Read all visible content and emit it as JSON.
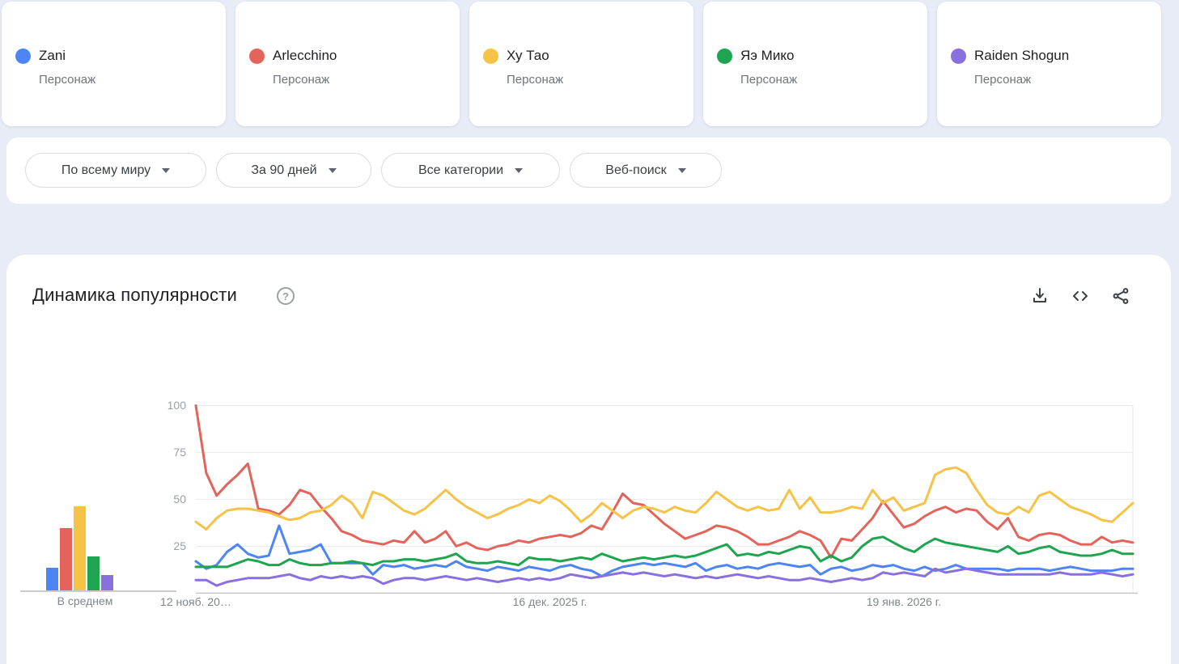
{
  "terms": [
    {
      "name": "Zani",
      "type": "Персонаж",
      "color": "#4d86f4"
    },
    {
      "name": "Arlecchino",
      "type": "Персонаж",
      "color": "#e4645c"
    },
    {
      "name": "Ху Тао",
      "type": "Персонаж",
      "color": "#f6c346"
    },
    {
      "name": "Яэ Мико",
      "type": "Персонаж",
      "color": "#1fa44f"
    },
    {
      "name": "Raiden Shogun",
      "type": "Персонаж",
      "color": "#8a6fdf"
    }
  ],
  "filters": {
    "geo": "По всему миру",
    "time": "За 90 дней",
    "category": "Все категории",
    "search_type": "Веб-поиск"
  },
  "section": {
    "title": "Динамика популярности"
  },
  "toolbar_icons": [
    "download-icon",
    "embed-code-icon",
    "share-icon"
  ],
  "colors": {
    "grid": "#e9eaec",
    "axis_line": "#c6c9cc",
    "y_label": "#9aa0a6",
    "x_label": "#80868b"
  },
  "chart_data": [
    {
      "type": "bar",
      "title": "В среднем",
      "categories": [
        "Zani",
        "Arlecchino",
        "Ху Тао",
        "Яэ Мико",
        "Raiden Shogun"
      ],
      "values": [
        12,
        33,
        45,
        18,
        8
      ],
      "colors": [
        "#4d86f4",
        "#e4645c",
        "#f6c346",
        "#1fa44f",
        "#8a6fdf"
      ],
      "ylim": [
        0,
        100
      ]
    },
    {
      "type": "line",
      "title": "Динамика популярности",
      "xlabel": "",
      "ylabel": "",
      "ylim": [
        0,
        100
      ],
      "y_ticks": [
        25,
        50,
        75,
        100
      ],
      "x_range_days": 90,
      "x_tick_days": [
        0,
        34,
        68
      ],
      "x_tick_labels": [
        "12 нояб. 20…",
        "16 дек. 2025 г.",
        "19 янв. 2026 г."
      ],
      "grid": true,
      "legend": "hidden",
      "series": [
        {
          "name": "Zani",
          "color": "#4d86f4",
          "values": [
            17,
            13,
            15,
            22,
            26,
            21,
            19,
            20,
            36,
            21,
            22,
            23,
            26,
            16,
            16,
            16,
            16,
            10,
            15,
            14,
            15,
            13,
            14,
            15,
            14,
            17,
            14,
            13,
            12,
            14,
            13,
            12,
            14,
            13,
            12,
            14,
            15,
            13,
            12,
            9,
            12,
            14,
            15,
            16,
            15,
            16,
            15,
            14,
            16,
            12,
            14,
            15,
            13,
            14,
            13,
            15,
            16,
            15,
            14,
            15,
            10,
            13,
            14,
            12,
            13,
            15,
            14,
            15,
            13,
            12,
            14,
            12,
            13,
            15,
            13,
            13,
            13,
            13,
            12,
            13,
            13,
            13,
            12,
            13,
            14,
            13,
            12,
            12,
            12,
            13,
            13
          ]
        },
        {
          "name": "Arlecchino",
          "color": "#e4645c",
          "values": [
            100,
            64,
            52,
            58,
            63,
            69,
            45,
            44,
            42,
            47,
            55,
            53,
            46,
            40,
            33,
            31,
            28,
            27,
            26,
            28,
            27,
            33,
            27,
            29,
            33,
            25,
            27,
            24,
            23,
            25,
            26,
            28,
            27,
            29,
            30,
            31,
            30,
            32,
            36,
            34,
            43,
            53,
            48,
            47,
            42,
            37,
            33,
            29,
            31,
            33,
            36,
            35,
            33,
            30,
            26,
            26,
            28,
            30,
            33,
            31,
            28,
            19,
            29,
            28,
            34,
            40,
            49,
            42,
            35,
            37,
            41,
            44,
            46,
            43,
            45,
            44,
            38,
            34,
            40,
            30,
            28,
            31,
            32,
            31,
            28,
            26,
            26,
            30,
            27,
            28,
            27
          ]
        },
        {
          "name": "Ху Тао",
          "color": "#f6c346",
          "values": [
            38,
            34,
            40,
            44,
            45,
            45,
            44,
            43,
            41,
            39,
            40,
            43,
            44,
            47,
            52,
            48,
            40,
            54,
            52,
            48,
            44,
            42,
            45,
            50,
            55,
            50,
            46,
            43,
            40,
            42,
            45,
            47,
            50,
            48,
            52,
            49,
            44,
            38,
            42,
            48,
            44,
            40,
            44,
            46,
            45,
            43,
            46,
            44,
            43,
            48,
            54,
            50,
            46,
            44,
            46,
            44,
            45,
            55,
            45,
            51,
            43,
            43,
            44,
            46,
            45,
            55,
            48,
            51,
            44,
            46,
            48,
            63,
            66,
            67,
            64,
            55,
            47,
            43,
            42,
            46,
            43,
            52,
            54,
            50,
            46,
            44,
            42,
            39,
            38,
            43,
            48
          ]
        },
        {
          "name": "Яэ Мико",
          "color": "#1fa44f",
          "values": [
            14,
            14,
            14,
            14,
            16,
            18,
            17,
            15,
            15,
            18,
            16,
            15,
            15,
            16,
            16,
            17,
            16,
            15,
            17,
            17,
            18,
            18,
            17,
            18,
            19,
            21,
            17,
            16,
            16,
            17,
            16,
            15,
            19,
            18,
            18,
            17,
            18,
            19,
            18,
            21,
            19,
            17,
            18,
            19,
            18,
            19,
            20,
            19,
            20,
            22,
            24,
            26,
            20,
            21,
            20,
            22,
            21,
            23,
            25,
            24,
            17,
            20,
            17,
            19,
            25,
            29,
            30,
            27,
            24,
            22,
            26,
            29,
            27,
            26,
            25,
            24,
            23,
            22,
            25,
            21,
            22,
            24,
            25,
            22,
            21,
            20,
            20,
            21,
            23,
            21,
            21
          ]
        },
        {
          "name": "Raiden Shogun",
          "color": "#8a6fdf",
          "values": [
            7,
            7,
            4,
            6,
            7,
            8,
            8,
            8,
            9,
            10,
            8,
            7,
            9,
            8,
            9,
            8,
            9,
            8,
            5,
            7,
            8,
            8,
            7,
            8,
            9,
            8,
            7,
            8,
            7,
            6,
            7,
            8,
            7,
            8,
            7,
            8,
            10,
            9,
            8,
            9,
            10,
            11,
            10,
            11,
            10,
            9,
            10,
            9,
            8,
            9,
            8,
            9,
            10,
            9,
            8,
            9,
            8,
            7,
            7,
            8,
            7,
            6,
            7,
            8,
            7,
            8,
            11,
            10,
            11,
            10,
            9,
            13,
            11,
            12,
            13,
            12,
            11,
            10,
            10,
            10,
            10,
            10,
            10,
            11,
            10,
            10,
            10,
            11,
            10,
            9,
            10
          ]
        }
      ]
    }
  ]
}
